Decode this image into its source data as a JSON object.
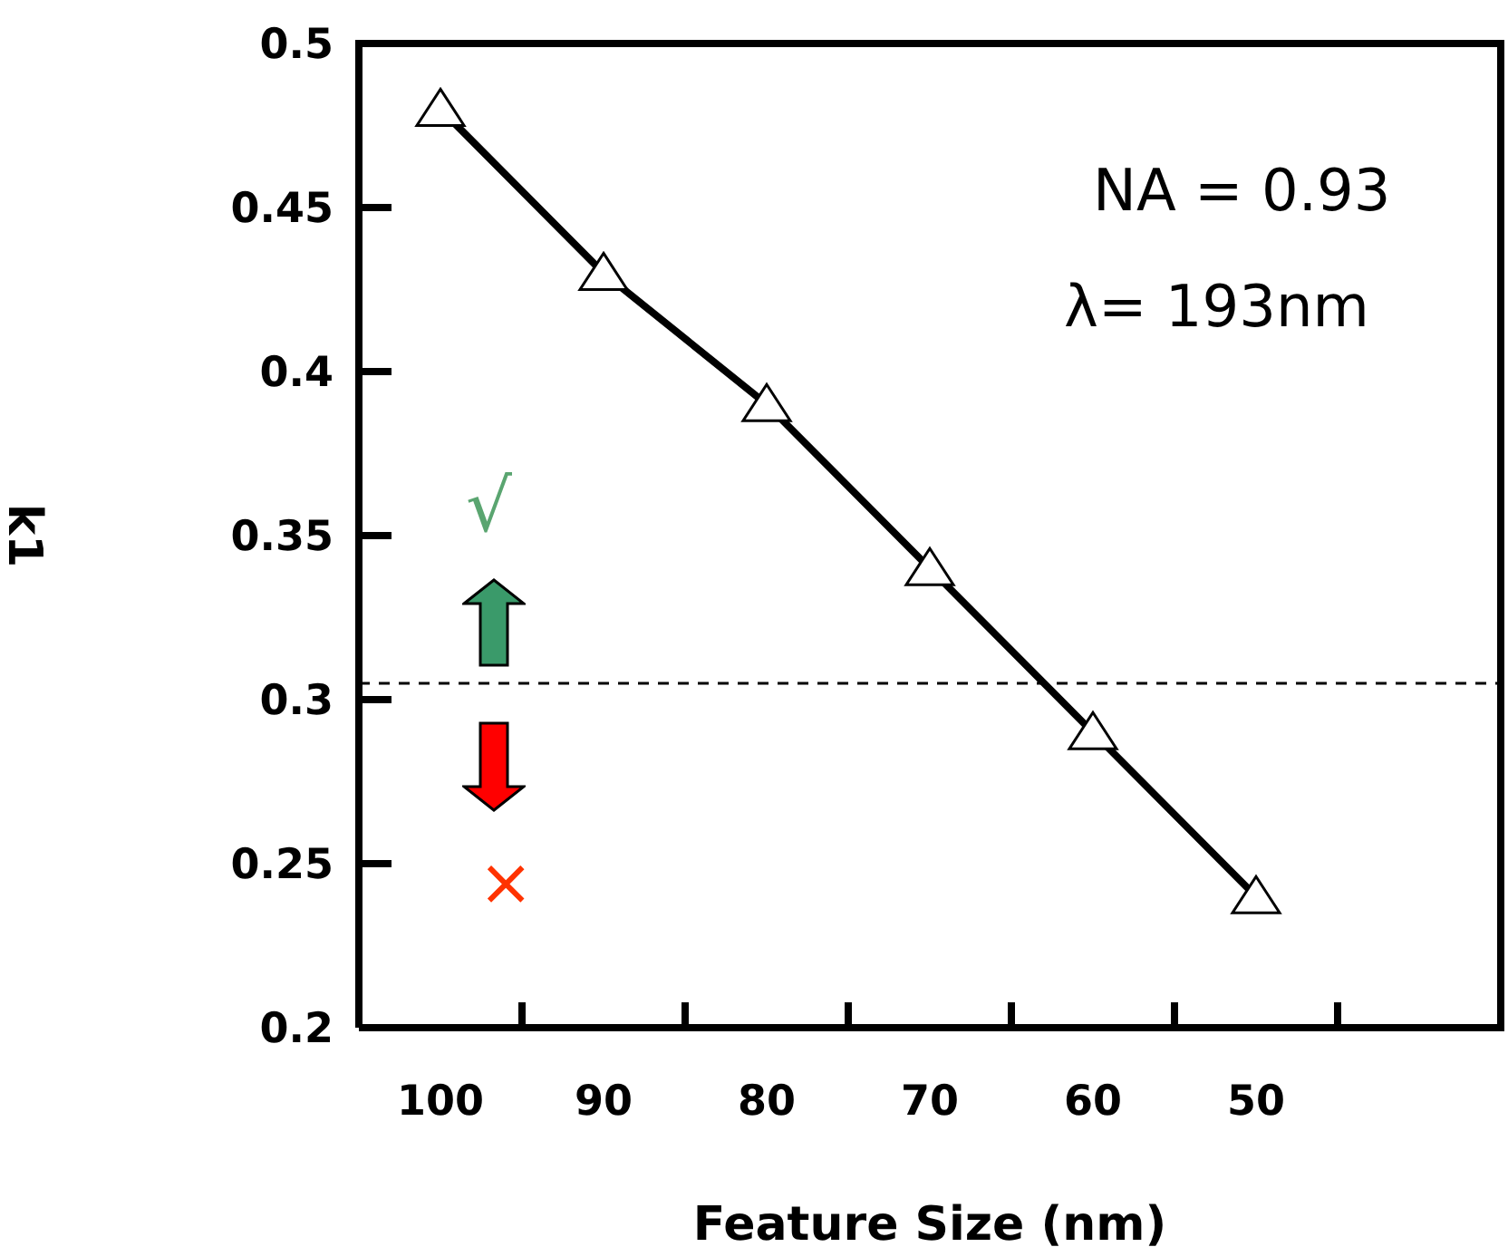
{
  "chart_data": {
    "type": "line",
    "xlabel": "Feature Size (nm)",
    "ylabel": "k1",
    "categories": [
      "100",
      "90",
      "80",
      "70",
      "60",
      "50",
      null
    ],
    "series": [
      {
        "color": "#000000",
        "values": [
          0.48,
          0.43,
          0.39,
          0.34,
          0.29,
          0.24,
          null
        ]
      }
    ],
    "ylim": [
      0.2,
      0.5
    ],
    "yticks": [
      0.2,
      0.25,
      0.3,
      0.35,
      0.4,
      0.45,
      0.5
    ],
    "ref_lines": [
      {
        "axis": "y",
        "value": 0.305,
        "color": "#000000",
        "line_style": "dashed"
      }
    ],
    "annotations": [
      "NA = 0.93",
      "λ= 193nm",
      "√",
      "×"
    ],
    "marker": "triangle",
    "line_style": "solid",
    "grid": false,
    "legend": false
  }
}
